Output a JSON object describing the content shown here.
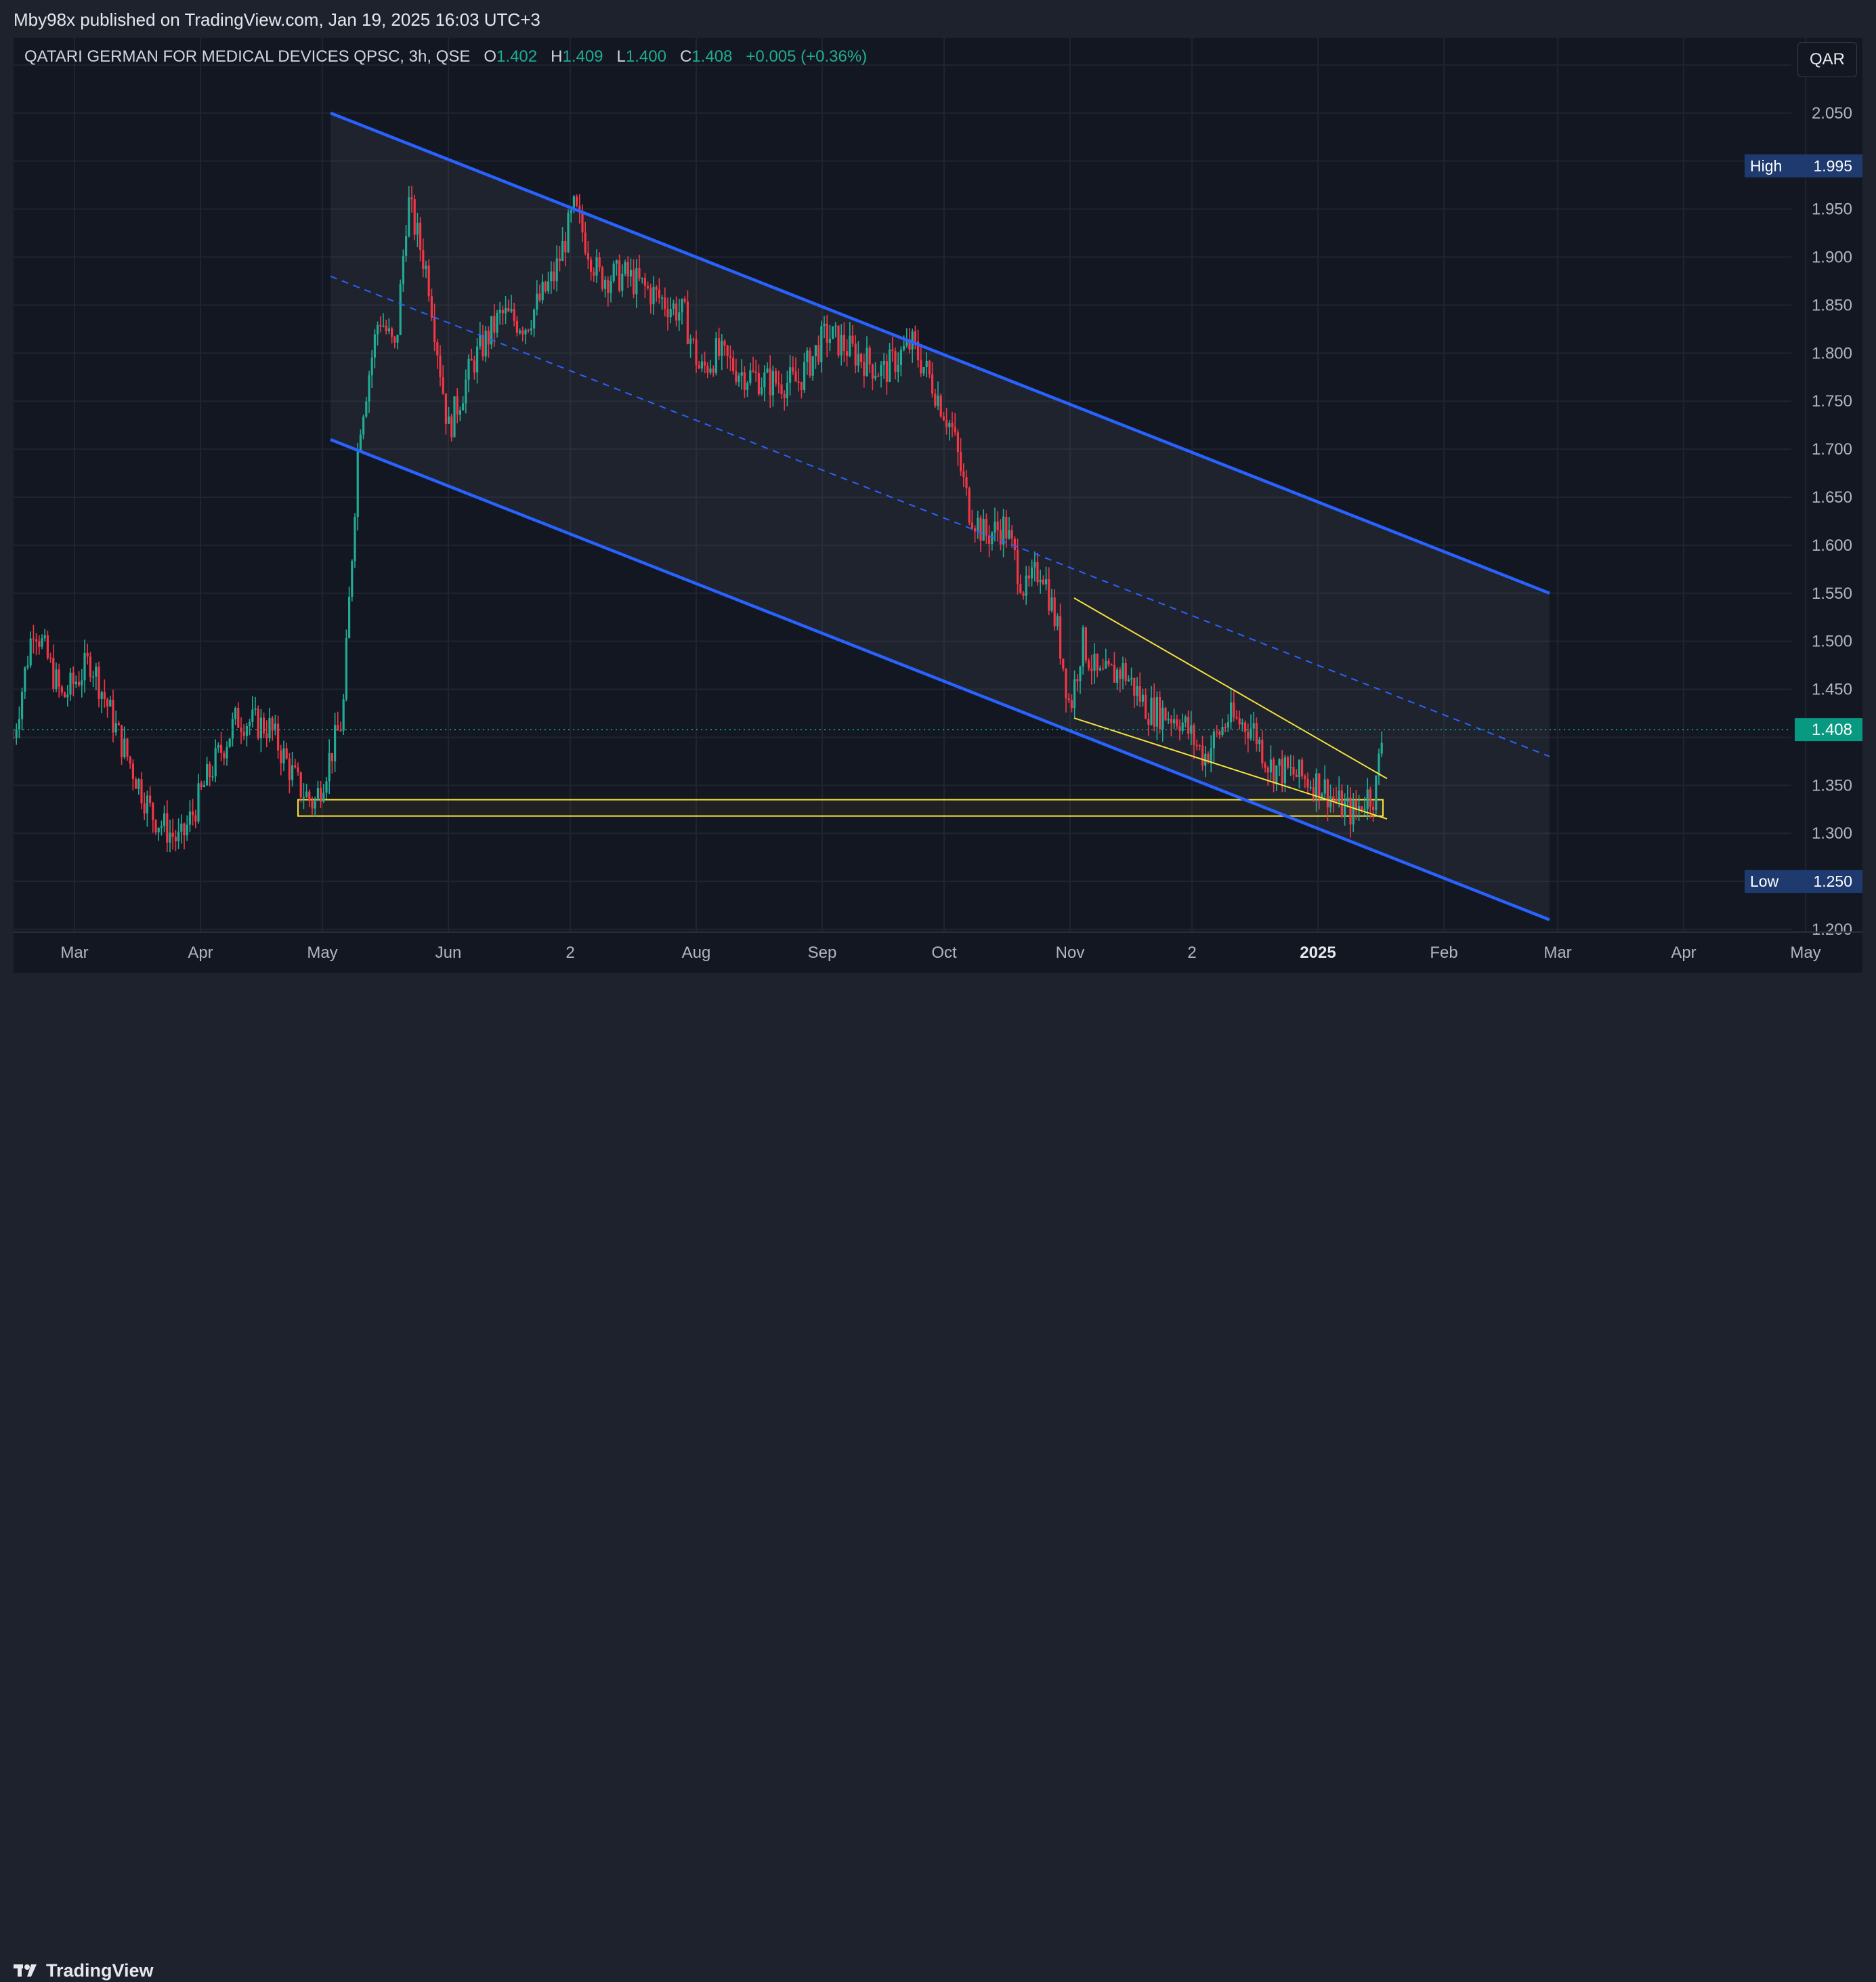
{
  "header": {
    "published": "Mby98x published on TradingView.com, Jan 19, 2025 16:03 UTC+3"
  },
  "legend": {
    "symbol": "QATARI GERMAN FOR MEDICAL DEVICES QPSC, 3h, QSE",
    "o_label": "O",
    "o_value": "1.402",
    "h_label": "H",
    "h_value": "1.409",
    "l_label": "L",
    "l_value": "1.400",
    "c_label": "C",
    "c_value": "1.408",
    "change": "+0.005 (+0.36%)"
  },
  "currency_button": "QAR",
  "footer": {
    "brand": "TradingView"
  },
  "colors": {
    "background": "#131722",
    "up": "#22ab94",
    "down": "#f23645",
    "channel": "#2962ff",
    "wedge": "#f7e13d",
    "high_badge": "#1e3a6e",
    "last_price": "#089981"
  },
  "chart_data": {
    "type": "candlestick",
    "symbol": "QATARI GERMAN FOR MEDICAL DEVICES QPSC",
    "interval": "3h",
    "exchange": "QSE",
    "currency": "QAR",
    "yticks": [
      2.05,
      1.95,
      1.9,
      1.85,
      1.8,
      1.75,
      1.7,
      1.65,
      1.6,
      1.55,
      1.5,
      1.45,
      1.35,
      1.3,
      1.25,
      1.2
    ],
    "ylim": [
      1.2,
      2.1
    ],
    "xticks": [
      "Mar",
      "Apr",
      "May",
      "Jun",
      "2",
      "Aug",
      "Sep",
      "Oct",
      "Nov",
      "2",
      "2025",
      "Feb",
      "Mar",
      "Apr",
      "May"
    ],
    "last_price": 1.408,
    "high": {
      "label": "High",
      "value": 1.995
    },
    "low": {
      "label": "Low",
      "value": 1.25
    },
    "price_path": [
      [
        "2024-02-15",
        1.4
      ],
      [
        "2024-02-20",
        1.52
      ],
      [
        "2024-02-27",
        1.44
      ],
      [
        "2024-03-05",
        1.48
      ],
      [
        "2024-03-12",
        1.4
      ],
      [
        "2024-03-20",
        1.32
      ],
      [
        "2024-03-27",
        1.29
      ],
      [
        "2024-04-03",
        1.36
      ],
      [
        "2024-04-10",
        1.42
      ],
      [
        "2024-04-18",
        1.41
      ],
      [
        "2024-04-25",
        1.35
      ],
      [
        "2024-04-29",
        1.33
      ],
      [
        "2024-05-06",
        1.42
      ],
      [
        "2024-05-10",
        1.72
      ],
      [
        "2024-05-15",
        1.84
      ],
      [
        "2024-05-19",
        1.8
      ],
      [
        "2024-05-22",
        1.96
      ],
      [
        "2024-05-27",
        1.88
      ],
      [
        "2024-06-01",
        1.72
      ],
      [
        "2024-06-07",
        1.79
      ],
      [
        "2024-06-14",
        1.84
      ],
      [
        "2024-06-20",
        1.83
      ],
      [
        "2024-06-27",
        1.88
      ],
      [
        "2024-07-02",
        1.95
      ],
      [
        "2024-07-08",
        1.88
      ],
      [
        "2024-07-15",
        1.88
      ],
      [
        "2024-07-22",
        1.86
      ],
      [
        "2024-07-29",
        1.84
      ],
      [
        "2024-08-02",
        1.78
      ],
      [
        "2024-08-06",
        1.8
      ],
      [
        "2024-08-12",
        1.78
      ],
      [
        "2024-08-19",
        1.77
      ],
      [
        "2024-08-26",
        1.77
      ],
      [
        "2024-09-02",
        1.82
      ],
      [
        "2024-09-09",
        1.8
      ],
      [
        "2024-09-16",
        1.78
      ],
      [
        "2024-09-23",
        1.81
      ],
      [
        "2024-09-28",
        1.77
      ],
      [
        "2024-10-03",
        1.72
      ],
      [
        "2024-10-07",
        1.64
      ],
      [
        "2024-10-11",
        1.61
      ],
      [
        "2024-10-16",
        1.62
      ],
      [
        "2024-10-21",
        1.55
      ],
      [
        "2024-10-25",
        1.58
      ],
      [
        "2024-10-29",
        1.51
      ],
      [
        "2024-11-01",
        1.43
      ],
      [
        "2024-11-04",
        1.5
      ],
      [
        "2024-11-08",
        1.46
      ],
      [
        "2024-11-14",
        1.47
      ],
      [
        "2024-11-20",
        1.43
      ],
      [
        "2024-11-28",
        1.42
      ],
      [
        "2024-12-04",
        1.38
      ],
      [
        "2024-12-10",
        1.42
      ],
      [
        "2024-12-16",
        1.41
      ],
      [
        "2024-12-20",
        1.37
      ],
      [
        "2024-12-27",
        1.36
      ],
      [
        "2025-01-02",
        1.35
      ],
      [
        "2025-01-06",
        1.33
      ],
      [
        "2025-01-10",
        1.32
      ],
      [
        "2025-01-13",
        1.34
      ],
      [
        "2025-01-15",
        1.34
      ],
      [
        "2025-01-17",
        1.408
      ]
    ],
    "channel": {
      "upper": [
        [
          "2024-05-03",
          2.05
        ],
        [
          "2025-02-27",
          1.55
        ]
      ],
      "lower": [
        [
          "2024-05-03",
          1.71
        ],
        [
          "2025-02-27",
          1.21
        ]
      ],
      "median": [
        [
          "2024-05-03",
          1.88
        ],
        [
          "2025-02-27",
          1.38
        ]
      ]
    },
    "wedge": {
      "upper": [
        [
          "2024-11-02",
          1.545
        ],
        [
          "2025-01-18",
          1.357
        ]
      ],
      "lower": [
        [
          "2024-11-02",
          1.42
        ],
        [
          "2025-01-18",
          1.315
        ]
      ]
    },
    "support_zone": {
      "start": "2024-04-25",
      "end": "2025-01-17",
      "top": 1.335,
      "bottom": 1.318
    }
  }
}
